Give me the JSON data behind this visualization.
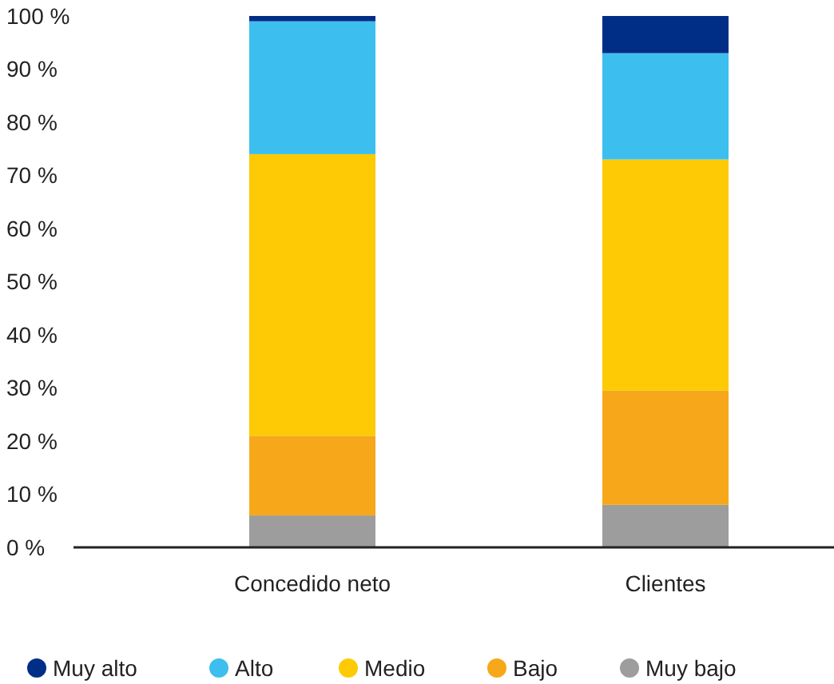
{
  "chart_data": {
    "type": "bar",
    "stacked": true,
    "categories": [
      "Concedido neto",
      "Clientes"
    ],
    "series": [
      {
        "name": "Muy bajo",
        "color": "#9d9d9d",
        "values": [
          6,
          8
        ]
      },
      {
        "name": "Bajo",
        "color": "#f6a81a",
        "values": [
          15,
          21.5
        ]
      },
      {
        "name": "Medio",
        "color": "#fdca05",
        "values": [
          53,
          43.5
        ]
      },
      {
        "name": "Alto",
        "color": "#3cbfef",
        "values": [
          25,
          20
        ]
      },
      {
        "name": "Muy alto",
        "color": "#002e87",
        "values": [
          1,
          7
        ]
      }
    ],
    "ylim": [
      0,
      100
    ],
    "yticks": [
      {
        "value": 0,
        "label": "0 %"
      },
      {
        "value": 10,
        "label": "10 %"
      },
      {
        "value": 20,
        "label": "20 %"
      },
      {
        "value": 30,
        "label": "30 %"
      },
      {
        "value": 40,
        "label": "40 %"
      },
      {
        "value": 50,
        "label": "50 %"
      },
      {
        "value": 60,
        "label": "60 %"
      },
      {
        "value": 70,
        "label": "70 %"
      },
      {
        "value": 80,
        "label": "80 %"
      },
      {
        "value": 90,
        "label": "90 %"
      },
      {
        "value": 100,
        "label": "100 %"
      }
    ],
    "grid": false,
    "legend": "bottom"
  }
}
